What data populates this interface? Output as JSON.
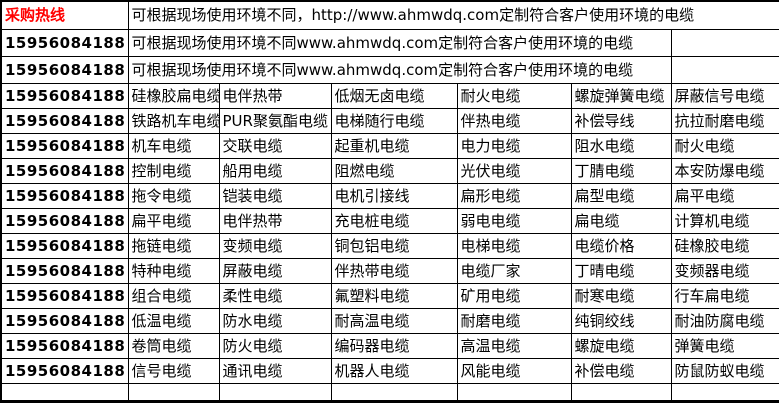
{
  "colors": {
    "accent_red": "#ff0000",
    "text_black": "#000000",
    "border_black": "#000000",
    "background_white": "#ffffff"
  },
  "header": {
    "hotline_label": "采购热线",
    "notice_row1": "可根据现场使用环境不同，http://www.ahmwdq.com定制符合客户使用环境的电缆",
    "notice_row2": "可根据现场使用环境不同www.ahmwdq.com定制符合客户使用环境的电缆",
    "notice_row3": "可根据现场使用环境不同www.ahmwdq.com定制符合客户使用环境的电缆"
  },
  "phone": "15956084188",
  "product_rows": [
    [
      "硅橡胶扁电缆",
      "电伴热带",
      "低烟无卤电缆",
      "耐火电缆",
      "螺旋弹簧电缆",
      "屏蔽信号电缆"
    ],
    [
      "铁路机车电缆",
      "PUR聚氨酯电缆",
      "电梯随行电缆",
      "伴热电缆",
      "补偿导线",
      "抗拉耐磨电缆"
    ],
    [
      "机车电缆",
      "交联电缆",
      "起重机电缆",
      "电力电缆",
      "阻水电缆",
      "耐火电缆"
    ],
    [
      "控制电缆",
      "船用电缆",
      "阻燃电缆",
      "光伏电缆",
      "丁腈电缆",
      "本安防爆电缆"
    ],
    [
      "拖令电缆",
      "铠装电缆",
      "电机引接线",
      "扁形电缆",
      "扁型电缆",
      "扁平电缆"
    ],
    [
      "扁平电缆",
      "电伴热带",
      "充电桩电缆",
      "弱电电缆",
      "扁电缆",
      "计算机电缆"
    ],
    [
      "拖链电缆",
      "变频电缆",
      "铜包铝电缆",
      "电梯电缆",
      "电缆价格",
      "硅橡胶电缆"
    ],
    [
      "特种电缆",
      "屏蔽电缆",
      "伴热带电缆",
      "电缆厂家",
      "丁晴电缆",
      "变频器电缆"
    ],
    [
      "组合电缆",
      "柔性电缆",
      "氟塑料电缆",
      "矿用电缆",
      "耐寒电缆",
      "行车扁电缆"
    ],
    [
      "低温电缆",
      "防水电缆",
      "耐高温电缆",
      "耐磨电缆",
      "纯铜绞线",
      "耐油防腐电缆"
    ],
    [
      "卷筒电缆",
      "防火电缆",
      "编码器电缆",
      "高温电缆",
      "螺旋电缆",
      "弹簧电缆"
    ],
    [
      "信号电缆",
      "通讯电缆",
      "机器人电缆",
      "风能电缆",
      "补偿电缆",
      "防鼠防蚁电缆"
    ]
  ]
}
